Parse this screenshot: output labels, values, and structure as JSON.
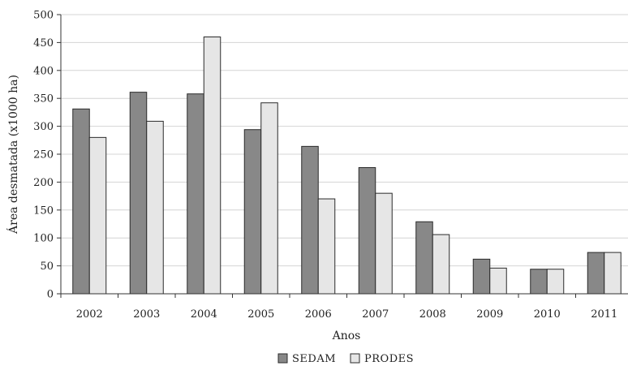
{
  "chart_data": {
    "type": "bar",
    "categories": [
      "2002",
      "2003",
      "2004",
      "2005",
      "2006",
      "2007",
      "2008",
      "2009",
      "2010",
      "2011"
    ],
    "series": [
      {
        "name": "SEDAM",
        "color": "#888888",
        "values": [
          331,
          361,
          358,
          294,
          264,
          226,
          129,
          62,
          44,
          74
        ]
      },
      {
        "name": "PRODES",
        "color": "#e6e6e6",
        "values": [
          280,
          309,
          460,
          342,
          170,
          180,
          106,
          46,
          44,
          74
        ]
      }
    ],
    "xlabel": "Anos",
    "ylabel": "Área desmatada (x1000 ha)",
    "ylim": [
      0,
      500
    ],
    "yticks": [
      0,
      50,
      100,
      150,
      200,
      250,
      300,
      350,
      400,
      450,
      500
    ],
    "grid": "horizontal",
    "legend_position": "bottom-center"
  }
}
